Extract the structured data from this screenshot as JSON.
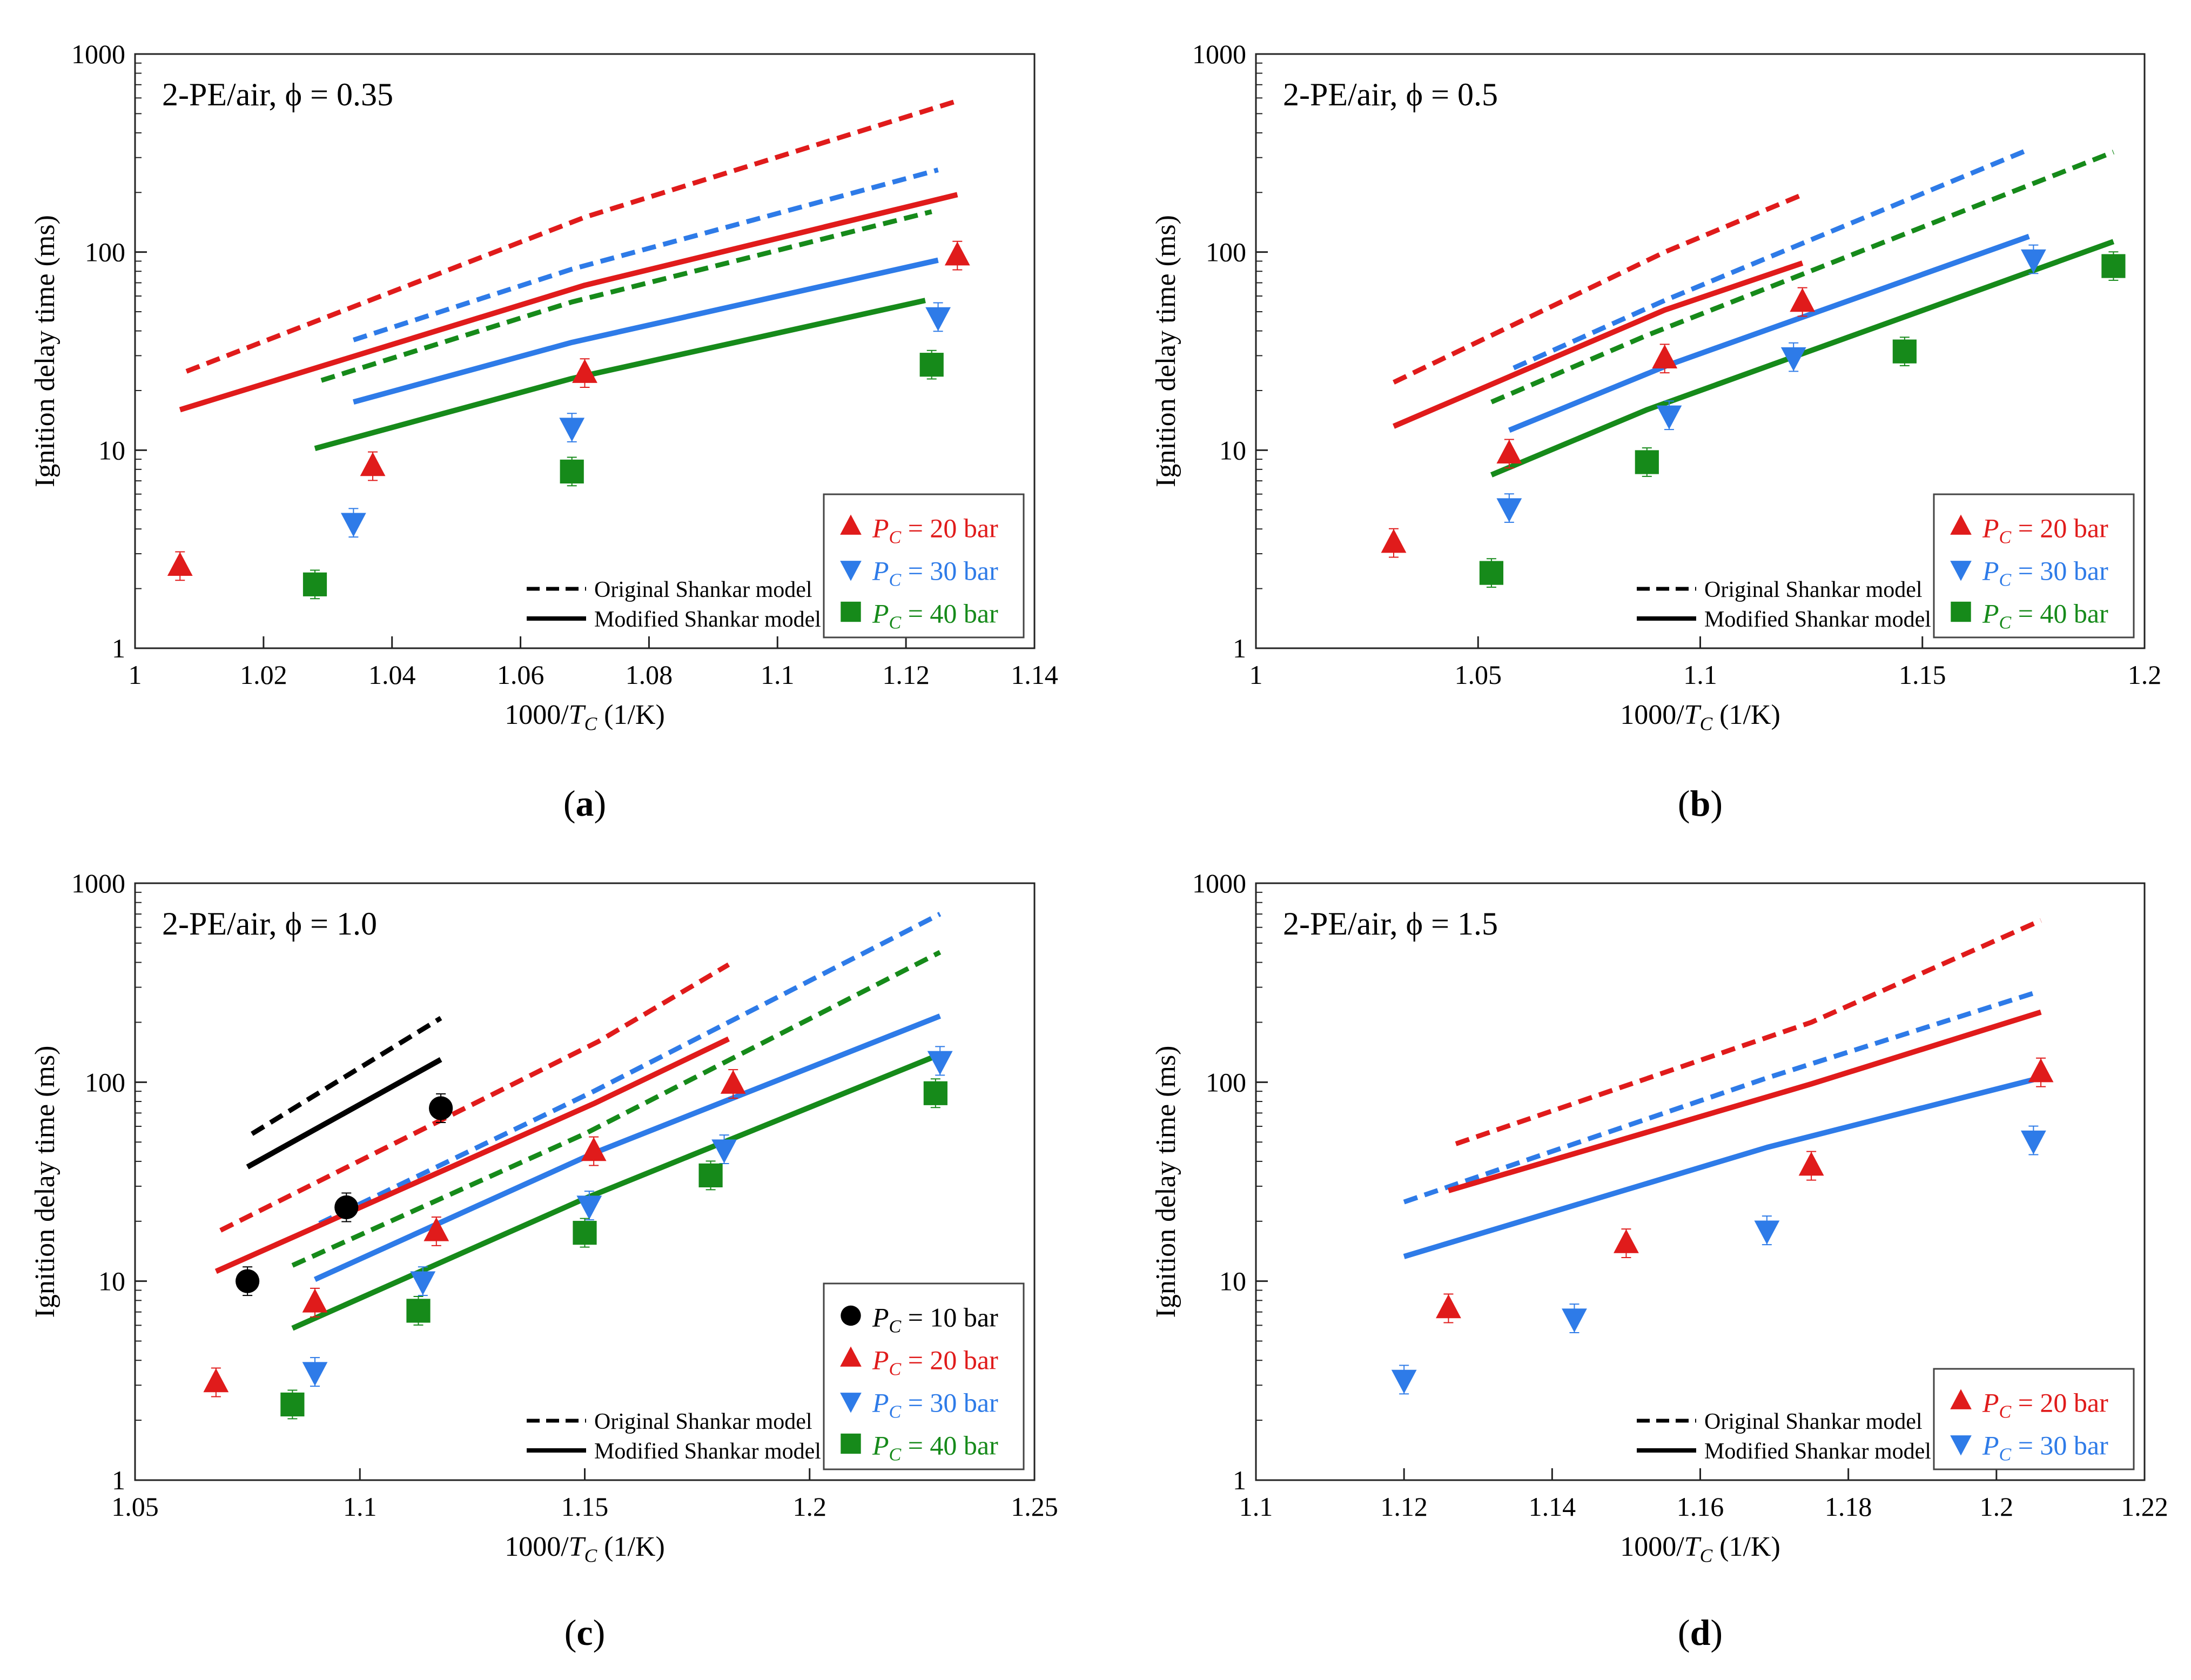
{
  "figure": {
    "common": {
      "ylabel": "Ignition delay time (ms)",
      "xlabel_prefix": "1000/",
      "xlabel_var": "T",
      "xlabel_sub": "C",
      "xlabel_suffix": " (1/K)",
      "legend_model_original": "Original Shankar model",
      "legend_model_modified": "Modified Shankar model",
      "legend_label_var": "P",
      "legend_label_sub": "C",
      "colors": {
        "p10": "#000000",
        "p20": "#e01b1b",
        "p30": "#2e7be8",
        "p40": "#168a1a"
      }
    }
  },
  "chart_data": [
    {
      "type": "scatter",
      "panel_label": "(a)",
      "annotation": "2-PE/air, ϕ = 0.35",
      "ylim": [
        1,
        1000
      ],
      "yscale": "log",
      "yticks": [
        "1",
        "10",
        "100",
        "1000"
      ],
      "xlim": [
        1.0,
        1.14
      ],
      "xticks": [
        "1",
        "1.02",
        "1.04",
        "1.06",
        "1.08",
        "1.1",
        "1.12",
        "1.14"
      ],
      "legend_position": "bottom-right",
      "legend": [
        {
          "key": "p20",
          "marker": "tri-up",
          "text": " = 20 bar"
        },
        {
          "key": "p30",
          "marker": "tri-down",
          "text": " = 30 bar"
        },
        {
          "key": "p40",
          "marker": "square",
          "text": " = 40 bar"
        }
      ],
      "series": [
        {
          "key": "p20",
          "marker": "tri-up",
          "points": [
            [
              1.007,
              2.6
            ],
            [
              1.037,
              8.3
            ],
            [
              1.07,
              24.5
            ],
            [
              1.128,
              96
            ]
          ]
        },
        {
          "key": "p30",
          "marker": "tri-down",
          "points": [
            [
              1.034,
              4.3
            ],
            [
              1.068,
              13
            ],
            [
              1.125,
              47
            ]
          ]
        },
        {
          "key": "p40",
          "marker": "square",
          "points": [
            [
              1.028,
              2.1
            ],
            [
              1.068,
              7.8
            ],
            [
              1.124,
              27
            ]
          ]
        }
      ],
      "model_lines": [
        {
          "key": "p20",
          "style": "dashed",
          "points": [
            [
              1.008,
              25
            ],
            [
              1.07,
              150
            ],
            [
              1.128,
              580
            ]
          ]
        },
        {
          "key": "p30",
          "style": "dashed",
          "points": [
            [
              1.034,
              36
            ],
            [
              1.068,
              82
            ],
            [
              1.125,
              260
            ]
          ]
        },
        {
          "key": "p40",
          "style": "dashed",
          "points": [
            [
              1.029,
              22.5
            ],
            [
              1.068,
              56
            ],
            [
              1.124,
              160
            ]
          ]
        },
        {
          "key": "p20",
          "style": "solid",
          "points": [
            [
              1.007,
              16
            ],
            [
              1.07,
              68
            ],
            [
              1.128,
              195
            ]
          ]
        },
        {
          "key": "p30",
          "style": "solid",
          "points": [
            [
              1.034,
              17.5
            ],
            [
              1.068,
              35
            ],
            [
              1.125,
              91
            ]
          ]
        },
        {
          "key": "p40",
          "style": "solid",
          "points": [
            [
              1.028,
              10.2
            ],
            [
              1.068,
              23
            ],
            [
              1.123,
              57
            ]
          ]
        }
      ]
    },
    {
      "type": "scatter",
      "panel_label": "(b)",
      "annotation": "2-PE/air, ϕ = 0.5",
      "ylim": [
        1,
        1000
      ],
      "yscale": "log",
      "yticks": [
        "1",
        "10",
        "100",
        "1000"
      ],
      "xlim": [
        1.0,
        1.2
      ],
      "xticks": [
        "1",
        "1.05",
        "1.1",
        "1.15",
        "1.2"
      ],
      "legend_position": "bottom-right",
      "legend": [
        {
          "key": "p20",
          "marker": "tri-up",
          "text": " = 20 bar"
        },
        {
          "key": "p30",
          "marker": "tri-down",
          "text": " = 30 bar"
        },
        {
          "key": "p40",
          "marker": "square",
          "text": " = 40 bar"
        }
      ],
      "series": [
        {
          "key": "p20",
          "marker": "tri-up",
          "points": [
            [
              1.031,
              3.4
            ],
            [
              1.057,
              9.6
            ],
            [
              1.092,
              29
            ],
            [
              1.123,
              56
            ]
          ]
        },
        {
          "key": "p30",
          "marker": "tri-down",
          "points": [
            [
              1.057,
              5.1
            ],
            [
              1.093,
              15
            ],
            [
              1.121,
              29.5
            ],
            [
              1.175,
              92
            ]
          ]
        },
        {
          "key": "p40",
          "marker": "square",
          "points": [
            [
              1.053,
              2.4
            ],
            [
              1.088,
              8.7
            ],
            [
              1.146,
              31.5
            ],
            [
              1.193,
              85
            ]
          ]
        }
      ],
      "model_lines": [
        {
          "key": "p20",
          "style": "dashed",
          "points": [
            [
              1.031,
              22
            ],
            [
              1.092,
              100
            ],
            [
              1.123,
              195
            ]
          ]
        },
        {
          "key": "p30",
          "style": "dashed",
          "points": [
            [
              1.058,
              26
            ],
            [
              1.092,
              57
            ],
            [
              1.174,
              330
            ]
          ]
        },
        {
          "key": "p40",
          "style": "dashed",
          "points": [
            [
              1.053,
              17.5
            ],
            [
              1.088,
              38
            ],
            [
              1.193,
              320
            ]
          ]
        },
        {
          "key": "p20",
          "style": "solid",
          "points": [
            [
              1.031,
              13.2
            ],
            [
              1.092,
              51
            ],
            [
              1.123,
              88
            ]
          ]
        },
        {
          "key": "p30",
          "style": "solid",
          "points": [
            [
              1.057,
              12.6
            ],
            [
              1.093,
              27
            ],
            [
              1.174,
              120
            ]
          ]
        },
        {
          "key": "p40",
          "style": "solid",
          "points": [
            [
              1.053,
              7.5
            ],
            [
              1.088,
              16
            ],
            [
              1.193,
              113
            ]
          ]
        }
      ]
    },
    {
      "type": "scatter",
      "panel_label": "(c)",
      "annotation": "2-PE/air, ϕ = 1.0",
      "ylim": [
        1,
        1000
      ],
      "yscale": "log",
      "yticks": [
        "1",
        "10",
        "100",
        "1000"
      ],
      "xlim": [
        1.05,
        1.25
      ],
      "xticks": [
        "1.05",
        "1.1",
        "1.15",
        "1.2",
        "1.25"
      ],
      "legend_position": "bottom-right",
      "legend": [
        {
          "key": "p10",
          "marker": "circle",
          "text": " = 10 bar"
        },
        {
          "key": "p20",
          "marker": "tri-up",
          "text": " = 20 bar"
        },
        {
          "key": "p30",
          "marker": "tri-down",
          "text": " = 30 bar"
        },
        {
          "key": "p40",
          "marker": "square",
          "text": " = 40 bar"
        }
      ],
      "series": [
        {
          "key": "p10",
          "marker": "circle",
          "points": [
            [
              1.075,
              10
            ],
            [
              1.097,
              23.5
            ],
            [
              1.118,
              74
            ]
          ]
        },
        {
          "key": "p20",
          "marker": "tri-up",
          "points": [
            [
              1.068,
              3.1
            ],
            [
              1.09,
              7.8
            ],
            [
              1.117,
              17.8
            ],
            [
              1.152,
              45
            ],
            [
              1.183,
              98
            ]
          ]
        },
        {
          "key": "p30",
          "marker": "tri-down",
          "points": [
            [
              1.09,
              3.5
            ],
            [
              1.114,
              10
            ],
            [
              1.151,
              24
            ],
            [
              1.181,
              46
            ],
            [
              1.229,
              128
            ]
          ]
        },
        {
          "key": "p40",
          "marker": "square",
          "points": [
            [
              1.085,
              2.4
            ],
            [
              1.113,
              7.1
            ],
            [
              1.15,
              17.5
            ],
            [
              1.178,
              34
            ],
            [
              1.228,
              88
            ]
          ]
        }
      ],
      "model_lines": [
        {
          "key": "p10",
          "style": "dashed",
          "points": [
            [
              1.076,
              55
            ],
            [
              1.118,
              210
            ]
          ]
        },
        {
          "key": "p20",
          "style": "dashed",
          "points": [
            [
              1.069,
              18
            ],
            [
              1.153,
              160
            ],
            [
              1.182,
              390
            ]
          ]
        },
        {
          "key": "p30",
          "style": "dashed",
          "points": [
            [
              1.091,
              19.5
            ],
            [
              1.152,
              90
            ],
            [
              1.229,
              700
            ]
          ]
        },
        {
          "key": "p40",
          "style": "dashed",
          "points": [
            [
              1.085,
              12
            ],
            [
              1.15,
              55
            ],
            [
              1.229,
              450
            ]
          ]
        },
        {
          "key": "p10",
          "style": "solid",
          "points": [
            [
              1.075,
              37.5
            ],
            [
              1.118,
              130
            ]
          ]
        },
        {
          "key": "p20",
          "style": "solid",
          "points": [
            [
              1.068,
              11.2
            ],
            [
              1.152,
              78
            ],
            [
              1.182,
              165
            ]
          ]
        },
        {
          "key": "p30",
          "style": "solid",
          "points": [
            [
              1.09,
              10.2
            ],
            [
              1.152,
              44
            ],
            [
              1.229,
              215
            ]
          ]
        },
        {
          "key": "p40",
          "style": "solid",
          "points": [
            [
              1.085,
              5.8
            ],
            [
              1.15,
              26
            ],
            [
              1.229,
              138
            ]
          ]
        }
      ]
    },
    {
      "type": "scatter",
      "panel_label": "(d)",
      "annotation": "2-PE/air, ϕ = 1.5",
      "ylim": [
        1,
        1000
      ],
      "yscale": "log",
      "yticks": [
        "1",
        "10",
        "100",
        "1000"
      ],
      "xlim": [
        1.1,
        1.22
      ],
      "xticks": [
        "1.1",
        "1.12",
        "1.14",
        "1.16",
        "1.18",
        "1.2",
        "1.22"
      ],
      "legend_position": "bottom-right",
      "legend": [
        {
          "key": "p20",
          "marker": "tri-up",
          "text": " = 20 bar"
        },
        {
          "key": "p30",
          "marker": "tri-down",
          "text": " = 30 bar"
        }
      ],
      "series": [
        {
          "key": "p20",
          "marker": "tri-up",
          "points": [
            [
              1.126,
              7.3
            ],
            [
              1.15,
              15.5
            ],
            [
              1.175,
              38
            ],
            [
              1.206,
              112
            ]
          ]
        },
        {
          "key": "p30",
          "marker": "tri-down",
          "points": [
            [
              1.12,
              3.2
            ],
            [
              1.143,
              6.5
            ],
            [
              1.169,
              18
            ],
            [
              1.205,
              51
            ]
          ]
        }
      ],
      "model_lines": [
        {
          "key": "p20",
          "style": "dashed",
          "points": [
            [
              1.127,
              49
            ],
            [
              1.175,
              200
            ],
            [
              1.206,
              650
            ]
          ]
        },
        {
          "key": "p30",
          "style": "dashed",
          "points": [
            [
              1.12,
              25
            ],
            [
              1.169,
              105
            ],
            [
              1.205,
              280
            ]
          ]
        },
        {
          "key": "p20",
          "style": "solid",
          "points": [
            [
              1.126,
              28.5
            ],
            [
              1.175,
              98
            ],
            [
              1.206,
              225
            ]
          ]
        },
        {
          "key": "p30",
          "style": "solid",
          "points": [
            [
              1.12,
              13.3
            ],
            [
              1.169,
              47
            ],
            [
              1.205,
              103
            ]
          ]
        }
      ]
    }
  ]
}
